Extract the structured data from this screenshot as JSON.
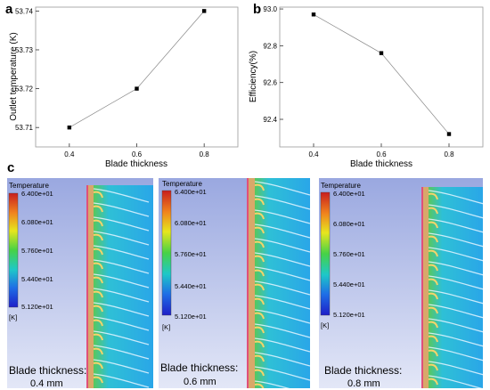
{
  "panel_labels": {
    "a": "a",
    "b": "b",
    "c": "c"
  },
  "chart_data": [
    {
      "type": "line",
      "panel": "a",
      "x": [
        0.4,
        0.6,
        0.8
      ],
      "series": [
        {
          "values": [
            53.71,
            53.72,
            53.74
          ]
        }
      ],
      "xlabel": "Blade thickness",
      "ylabel": "Outlet temperature (K)",
      "xlim": [
        0.3,
        0.9
      ],
      "ylim": [
        53.705,
        53.741
      ],
      "xticks": [
        "0.4",
        "0.6",
        "0.8"
      ],
      "yticks": [
        "53.71",
        "53.72",
        "53.73",
        "53.74"
      ],
      "grid": false
    },
    {
      "type": "line",
      "panel": "b",
      "x": [
        0.4,
        0.6,
        0.8
      ],
      "series": [
        {
          "values": [
            92.97,
            92.76,
            92.32
          ]
        }
      ],
      "xlabel": "Blade thickness",
      "ylabel": "Efficiency(%)",
      "xlim": [
        0.3,
        0.9
      ],
      "ylim": [
        92.25,
        93.01
      ],
      "xticks": [
        "0.4",
        "0.6",
        "0.8"
      ],
      "yticks": [
        "93.0",
        "92.8",
        "92.6",
        "92.4"
      ],
      "grid": false
    }
  ],
  "contours": [
    {
      "caption_line1": "Blade  thickness:",
      "caption_line2": "0.4 mm"
    },
    {
      "caption_line1": "Blade  thickness:",
      "caption_line2": "0.6 mm"
    },
    {
      "caption_line1": "Blade  thickness:",
      "caption_line2": "0.8 mm"
    }
  ],
  "legend": {
    "title": "Temperature",
    "unit": "[K]",
    "labels": [
      "6.400e+01",
      "6.080e+01",
      "5.760e+01",
      "5.440e+01",
      "5.120e+01"
    ],
    "colors": [
      "#c81e1e",
      "#f0821e",
      "#e6e61e",
      "#46d246",
      "#1ec8c8",
      "#1e6ee6",
      "#1e1ec8"
    ]
  }
}
